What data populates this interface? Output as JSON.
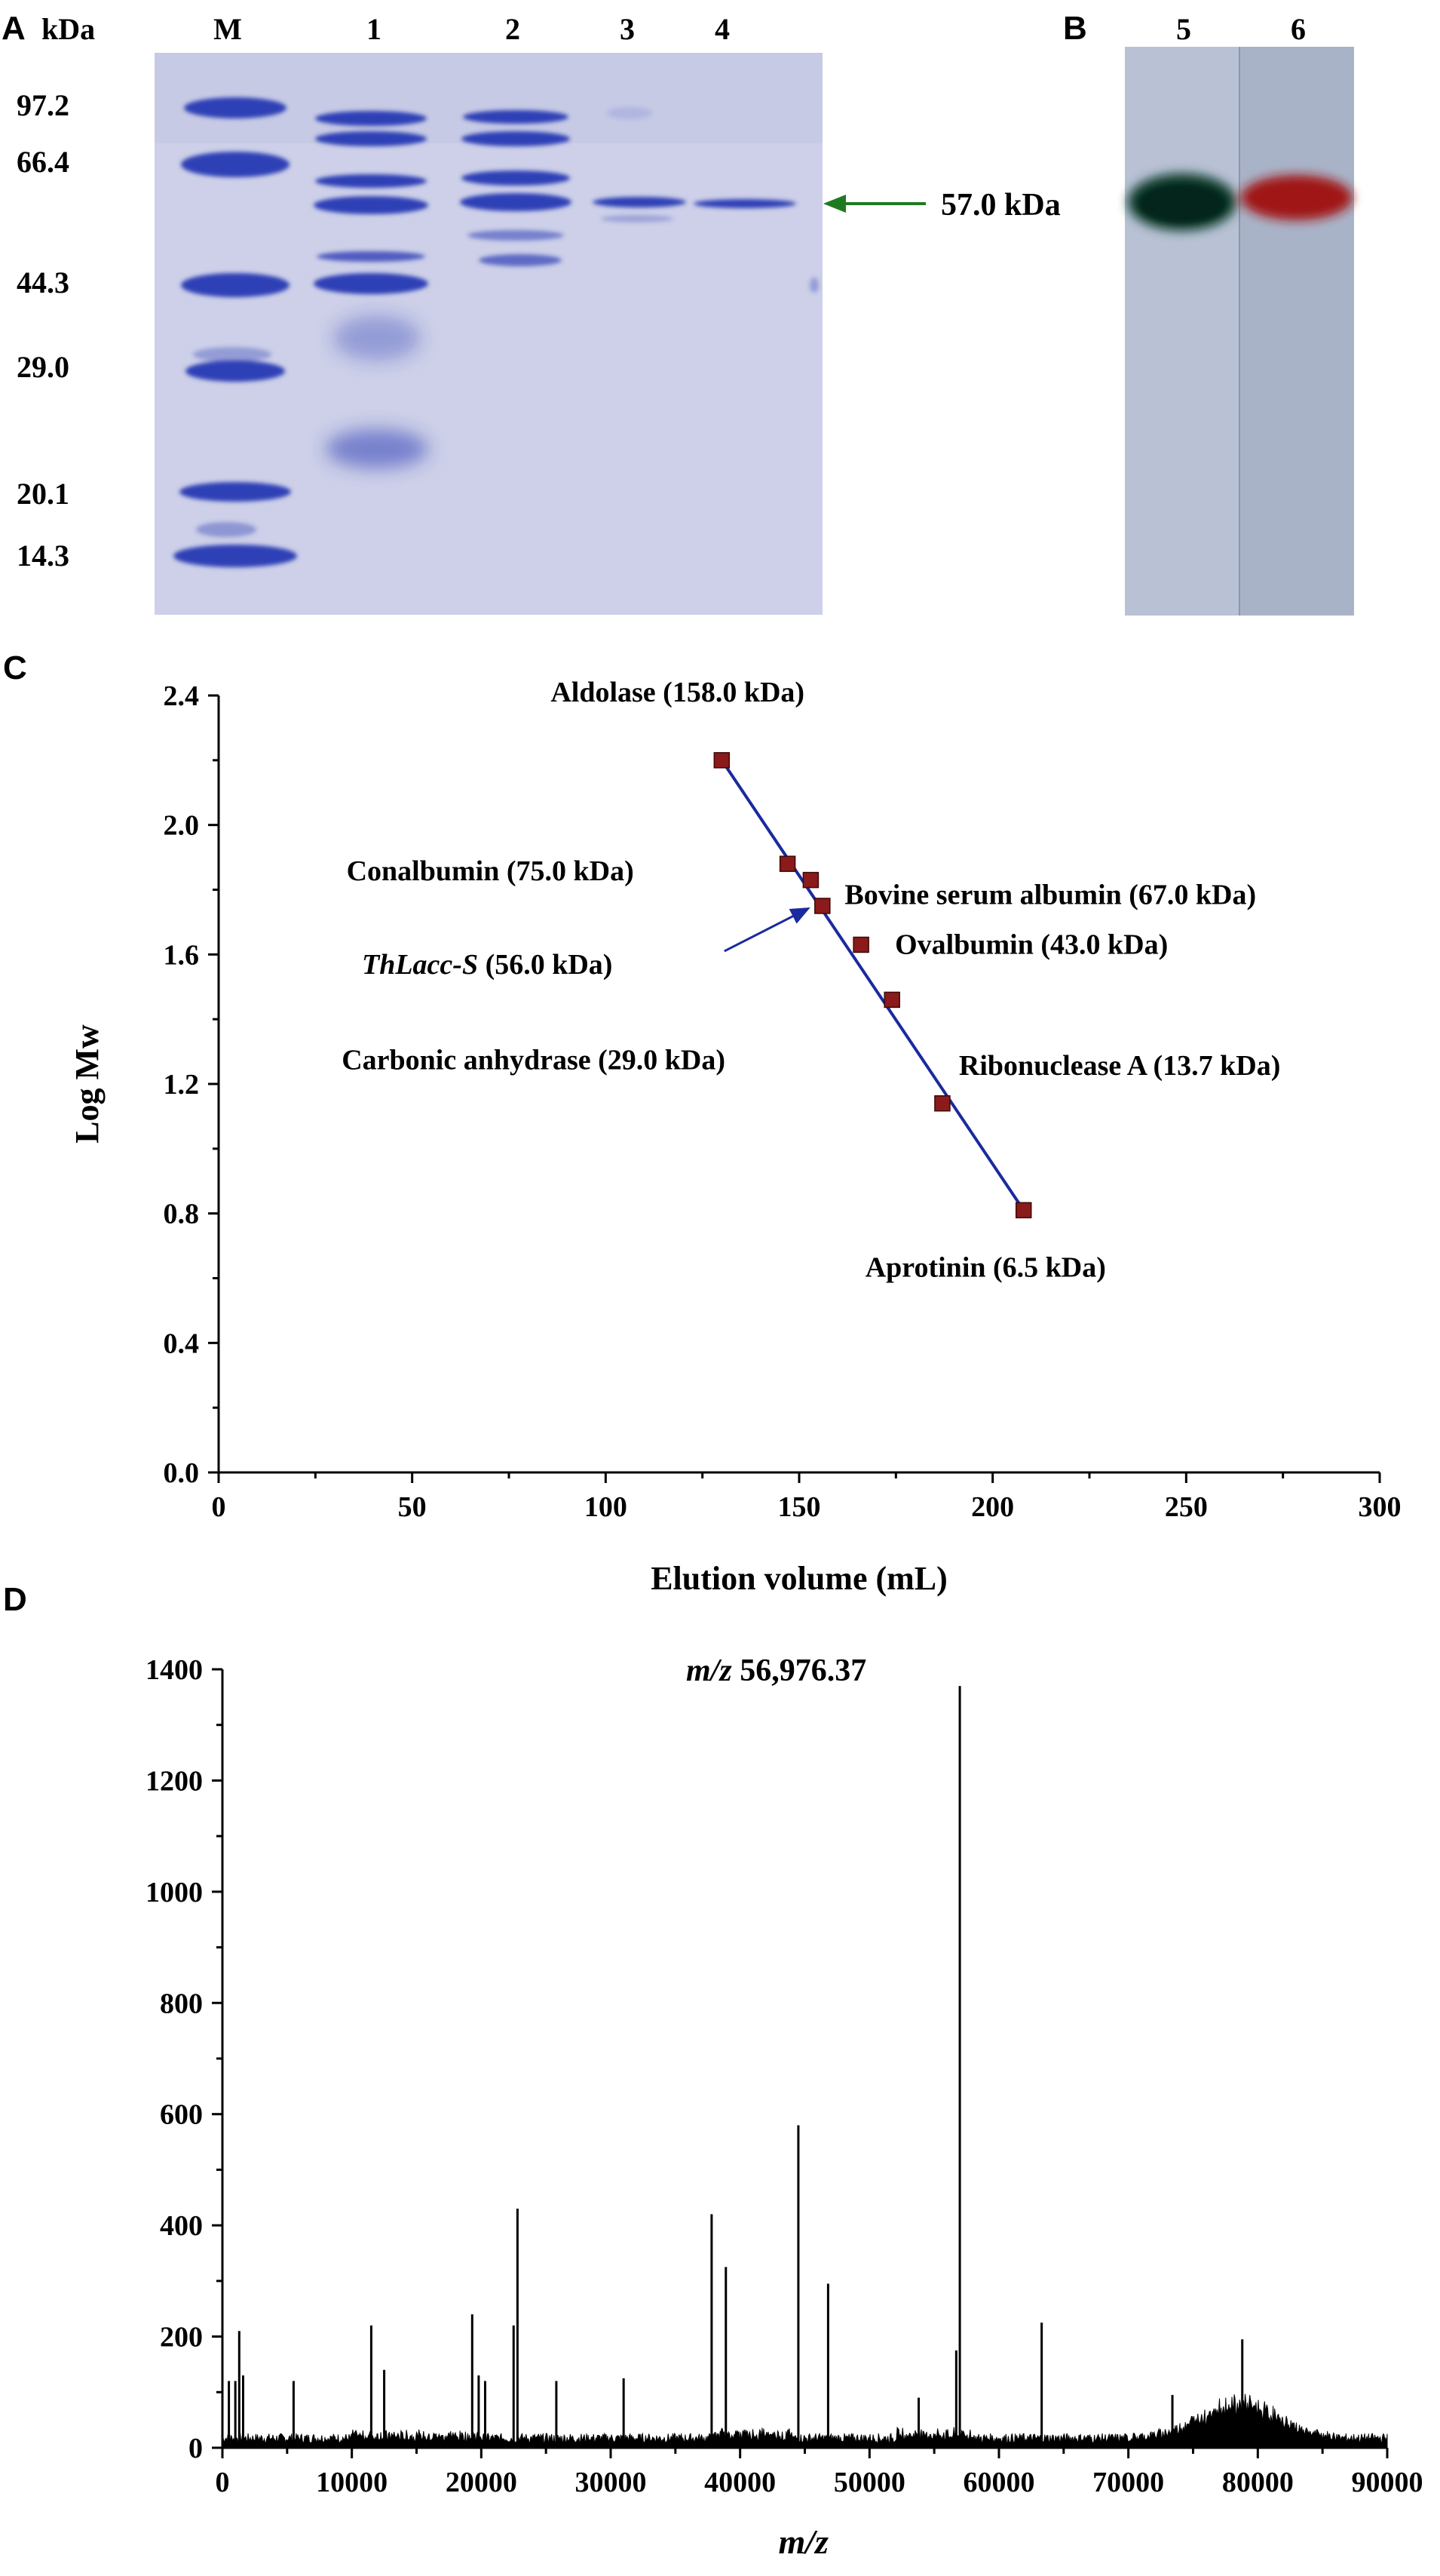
{
  "panels": {
    "A": {
      "letter": "A",
      "unit_label": "kDa",
      "lane_labels": [
        "M",
        "1",
        "2",
        "3",
        "4"
      ],
      "marker_labels": [
        "97.2",
        "66.4",
        "44.3",
        "29.0",
        "20.1",
        "14.3"
      ],
      "arrow_label": "57.0 kDa"
    },
    "B": {
      "letter": "B",
      "lane_labels": [
        "5",
        "6"
      ]
    },
    "C": {
      "letter": "C"
    },
    "D": {
      "letter": "D"
    }
  },
  "colors": {
    "gel_bg": "#cfd2ea",
    "band": "#2f3fb6",
    "arrow": "#1f7a1f",
    "marker_point": "#8b1a1a",
    "fit_line": "#1a2a9e",
    "blot_green": "#0c3a2c",
    "blot_red": "#a01818",
    "blot_bg": "#b7c1d2"
  },
  "chart_data": [
    {
      "panel": "C",
      "type": "scatter",
      "xlabel": "Elution volume (mL)",
      "ylabel": "Log Mw",
      "xlim": [
        0,
        300
      ],
      "ylim": [
        0.0,
        2.4
      ],
      "xticks": [
        "0",
        "50",
        "100",
        "150",
        "200",
        "250",
        "300"
      ],
      "yticks": [
        "0.0",
        "0.4",
        "0.8",
        "1.2",
        "1.6",
        "2.0",
        "2.4"
      ],
      "points": [
        {
          "label": "Aldolase (158.0 kDa)",
          "x": 130,
          "y": 2.2
        },
        {
          "label": "Conalbumin (75.0 kDa)",
          "x": 147,
          "y": 1.88
        },
        {
          "label": "Bovine serum albumin (67.0 kDa)",
          "x": 153,
          "y": 1.83
        },
        {
          "label": "Ovalbumin (43.0 kDa)",
          "x": 166,
          "y": 1.63
        },
        {
          "label": "Carbonic anhydrase (29.0 kDa)",
          "x": 174,
          "y": 1.46
        },
        {
          "label": "Ribonuclease A (13.7 kDa)",
          "x": 187,
          "y": 1.14
        },
        {
          "label": "Aprotinin (6.5 kDa)",
          "x": 208,
          "y": 0.81
        }
      ],
      "sample": {
        "name": "ThLacc-S",
        "label_rest": " (56.0 kDa)",
        "x": 156,
        "y": 1.75
      },
      "fit_line": {
        "x": [
          130,
          208
        ],
        "y": [
          2.2,
          0.81
        ]
      }
    },
    {
      "panel": "D",
      "type": "line",
      "xlabel": "m/z",
      "ylabel": "",
      "xlim": [
        0,
        90000
      ],
      "ylim": [
        0,
        1400
      ],
      "xticks": [
        "0",
        "10000",
        "20000",
        "30000",
        "40000",
        "50000",
        "60000",
        "70000",
        "80000",
        "90000"
      ],
      "yticks": [
        "0",
        "200",
        "400",
        "600",
        "800",
        "1000",
        "1200",
        "1400"
      ],
      "annotation": "m/z 56,976.37",
      "peaks": [
        {
          "x": 500,
          "y": 120
        },
        {
          "x": 1000,
          "y": 120
        },
        {
          "x": 1300,
          "y": 210
        },
        {
          "x": 1600,
          "y": 130
        },
        {
          "x": 5500,
          "y": 120
        },
        {
          "x": 11500,
          "y": 220
        },
        {
          "x": 12500,
          "y": 140
        },
        {
          "x": 19300,
          "y": 240
        },
        {
          "x": 19800,
          "y": 130
        },
        {
          "x": 20300,
          "y": 120
        },
        {
          "x": 22500,
          "y": 220
        },
        {
          "x": 22800,
          "y": 430
        },
        {
          "x": 25800,
          "y": 120
        },
        {
          "x": 31000,
          "y": 125
        },
        {
          "x": 37800,
          "y": 420
        },
        {
          "x": 38900,
          "y": 325
        },
        {
          "x": 44500,
          "y": 580
        },
        {
          "x": 46800,
          "y": 295
        },
        {
          "x": 53800,
          "y": 90
        },
        {
          "x": 56700,
          "y": 175
        },
        {
          "x": 56976,
          "y": 1370
        },
        {
          "x": 63300,
          "y": 225
        },
        {
          "x": 73400,
          "y": 95
        },
        {
          "x": 78800,
          "y": 195
        }
      ]
    }
  ]
}
